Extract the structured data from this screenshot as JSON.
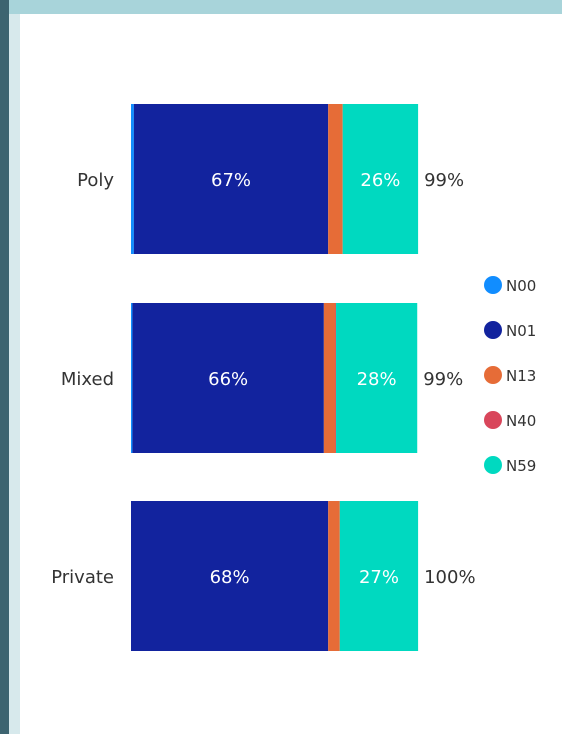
{
  "chart_data": {
    "type": "bar",
    "orientation": "horizontal",
    "stacked": true,
    "categories": [
      "Poly",
      "Mixed",
      "Private"
    ],
    "series": [
      {
        "name": "N00",
        "color": "#118dff",
        "values": [
          1,
          0.5,
          0
        ]
      },
      {
        "name": "N01",
        "color": "#12239e",
        "values": [
          67,
          66,
          68
        ]
      },
      {
        "name": "N13",
        "color": "#e66c37",
        "values": [
          5,
          4,
          4
        ]
      },
      {
        "name": "N40",
        "color": "#d9465b",
        "values": [
          0,
          0.2,
          0
        ]
      },
      {
        "name": "N59",
        "color": "#00d9c0",
        "values": [
          26,
          28,
          27
        ]
      }
    ],
    "bar_labels": [
      {
        "N01": "67%",
        "N59": "26%"
      },
      {
        "N01": "66%",
        "N59": "28%"
      },
      {
        "N01": "68%",
        "N59": "27%"
      }
    ],
    "totals": [
      "99%",
      "99%",
      "100%"
    ],
    "xlim": [
      0,
      100
    ],
    "legend_position": "right"
  }
}
